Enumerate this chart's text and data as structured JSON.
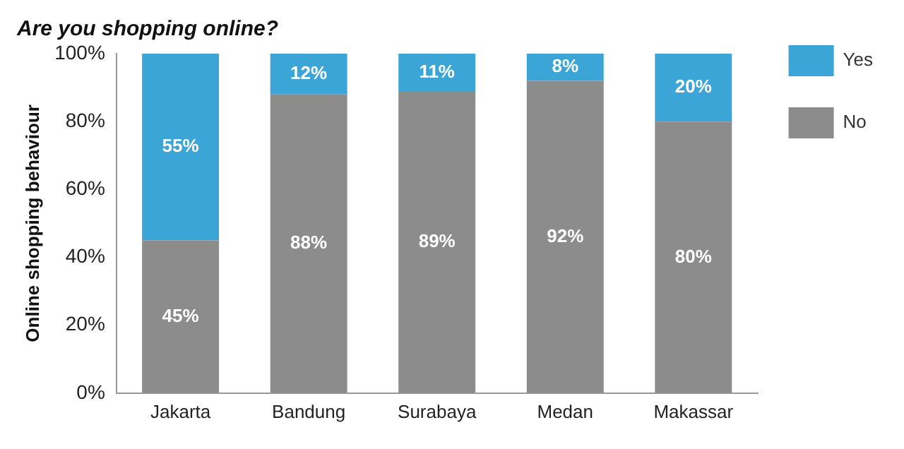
{
  "chart_data": {
    "type": "bar",
    "title": "Are you shopping online?",
    "ylabel": "Online shopping behaviour",
    "categories": [
      "Jakarta",
      "Bandung",
      "Surabaya",
      "Medan",
      "Makassar"
    ],
    "stacked": true,
    "series": [
      {
        "name": "No",
        "color": "#8c8c8c",
        "values": [
          45,
          88,
          89,
          92,
          80
        ],
        "value_labels": [
          "45%",
          "88%",
          "89%",
          "92%",
          "80%"
        ]
      },
      {
        "name": "Yes",
        "color": "#3aa5d6",
        "values": [
          55,
          12,
          11,
          8,
          20
        ],
        "value_labels": [
          "55%",
          "12%",
          "11%",
          "8%",
          "20%"
        ]
      }
    ],
    "ylim": [
      0,
      100
    ],
    "yticks": [
      {
        "value": 0,
        "label": "0%"
      },
      {
        "value": 20,
        "label": "20%"
      },
      {
        "value": 40,
        "label": "40%"
      },
      {
        "value": 60,
        "label": "60%"
      },
      {
        "value": 80,
        "label": "80%"
      },
      {
        "value": 100,
        "label": "100%"
      }
    ],
    "grid": false,
    "legend": "top right"
  }
}
